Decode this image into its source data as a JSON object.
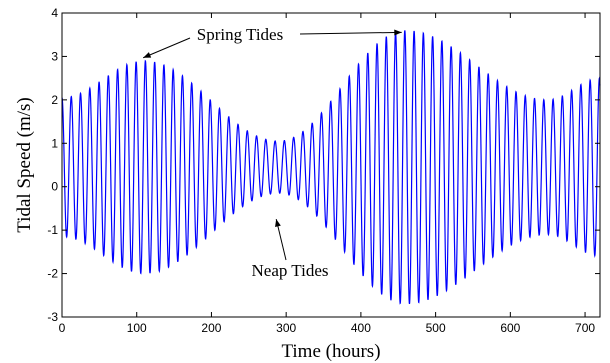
{
  "chart_data": {
    "type": "line",
    "xlabel": "Time (hours)",
    "ylabel": "Tidal Speed (m/s)",
    "xlim": [
      0,
      720
    ],
    "ylim": [
      -3,
      4
    ],
    "xticks": [
      0,
      100,
      200,
      300,
      400,
      500,
      600,
      700
    ],
    "yticks": [
      -3,
      -2,
      -1,
      0,
      1,
      2,
      3,
      4
    ],
    "grid": false,
    "line_color": "#0000ff",
    "series": [
      {
        "model": "amplitude-modulated semidiurnal tide",
        "period_hours": 12.4,
        "offset": 0.45,
        "envelope_peaks": [
          {
            "x": 0,
            "amplitude": 1.6
          },
          {
            "x": 110,
            "amplitude": 2.45
          },
          {
            "x": 290,
            "amplitude": 0.6
          },
          {
            "x": 460,
            "amplitude": 3.15
          },
          {
            "x": 650,
            "amplitude": 1.55
          },
          {
            "x": 720,
            "amplitude": 2.05
          }
        ]
      }
    ],
    "annotations": [
      {
        "text": "Spring Tides",
        "targets": [
          {
            "x": 110,
            "y": 2.9
          },
          {
            "x": 460,
            "y": 3.6
          }
        ]
      },
      {
        "text": "Neap Tides",
        "targets": [
          {
            "x": 288,
            "y": -0.7
          }
        ]
      }
    ]
  }
}
